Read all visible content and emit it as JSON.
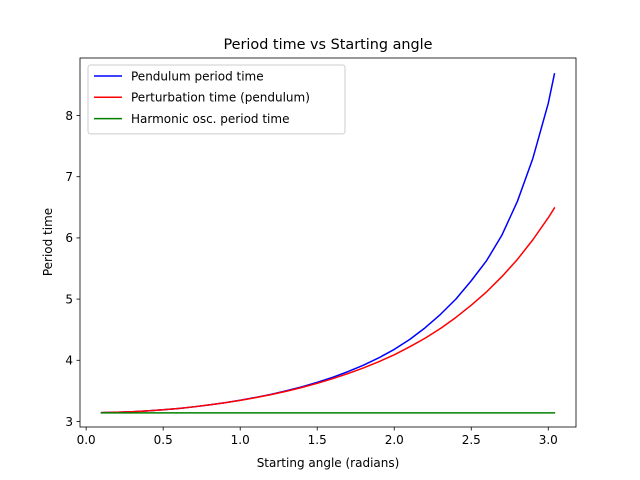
{
  "chart_data": {
    "type": "line",
    "title": "Period time vs Starting angle",
    "xlabel": "Starting angle (radians)",
    "ylabel": "Period time",
    "xlim": [
      -0.04,
      3.18
    ],
    "ylim": [
      2.91,
      8.94
    ],
    "xticks": [
      0.0,
      0.5,
      1.0,
      1.5,
      2.0,
      2.5,
      3.0
    ],
    "xtick_labels": [
      "0.0",
      "0.5",
      "1.0",
      "1.5",
      "2.0",
      "2.5",
      "3.0"
    ],
    "yticks": [
      3,
      4,
      5,
      6,
      7,
      8
    ],
    "ytick_labels": [
      "3",
      "4",
      "5",
      "6",
      "7",
      "8"
    ],
    "grid": false,
    "legend_position": "upper-left",
    "series": [
      {
        "name": "Pendulum period time",
        "color": "#0000ff",
        "x": [
          0.1,
          0.2,
          0.3,
          0.4,
          0.5,
          0.6,
          0.7,
          0.8,
          0.9,
          1.0,
          1.1,
          1.2,
          1.3,
          1.4,
          1.5,
          1.6,
          1.7,
          1.8,
          1.9,
          2.0,
          2.1,
          2.2,
          2.3,
          2.4,
          2.5,
          2.6,
          2.7,
          2.8,
          2.9,
          3.0,
          3.04
        ],
        "y": [
          3.144,
          3.15,
          3.159,
          3.173,
          3.191,
          3.213,
          3.24,
          3.271,
          3.307,
          3.347,
          3.393,
          3.444,
          3.502,
          3.567,
          3.64,
          3.722,
          3.815,
          3.92,
          4.04,
          4.178,
          4.34,
          4.53,
          4.75,
          5.0,
          5.3,
          5.63,
          6.05,
          6.6,
          7.3,
          8.2,
          8.68
        ]
      },
      {
        "name": "Perturbation time (pendulum)",
        "color": "#ff0000",
        "x": [
          0.1,
          0.2,
          0.3,
          0.4,
          0.5,
          0.6,
          0.7,
          0.8,
          0.9,
          1.0,
          1.1,
          1.2,
          1.3,
          1.4,
          1.5,
          1.6,
          1.7,
          1.8,
          1.9,
          2.0,
          2.1,
          2.2,
          2.3,
          2.4,
          2.5,
          2.6,
          2.7,
          2.8,
          2.9,
          3.0,
          3.04
        ],
        "y": [
          3.144,
          3.15,
          3.159,
          3.173,
          3.191,
          3.213,
          3.24,
          3.271,
          3.306,
          3.345,
          3.39,
          3.439,
          3.494,
          3.556,
          3.624,
          3.7,
          3.783,
          3.875,
          3.977,
          4.09,
          4.22,
          4.36,
          4.52,
          4.7,
          4.9,
          5.12,
          5.37,
          5.65,
          5.97,
          6.33,
          6.49
        ]
      },
      {
        "name": "Harmonic osc. period time",
        "color": "#008000",
        "x": [
          0.1,
          3.04
        ],
        "y": [
          3.1416,
          3.1416
        ]
      }
    ]
  }
}
